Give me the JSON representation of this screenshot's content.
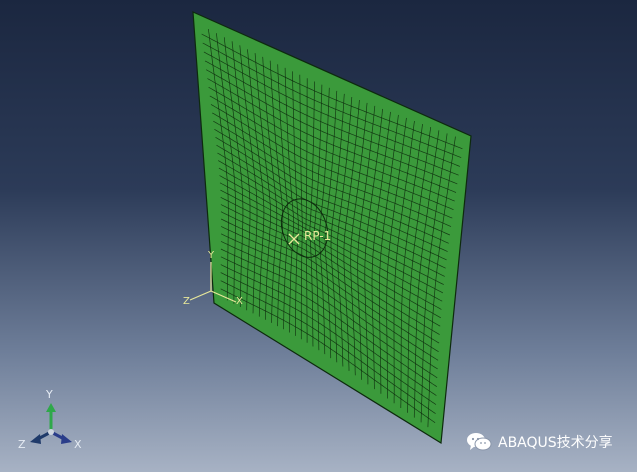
{
  "viewport": {
    "reference_point_label": "RP-1",
    "mesh_color": "#3b9a3b",
    "mesh_line_color": "#0d2a0d",
    "label_color": "#e8e89a",
    "local_triad": {
      "x": "X",
      "y": "Y",
      "z": "Z"
    },
    "global_triad": {
      "x": "X",
      "y": "Y",
      "z": "Z"
    }
  },
  "watermark": {
    "text": "ABAQUS技术分享",
    "icon": "wechat-icon"
  }
}
